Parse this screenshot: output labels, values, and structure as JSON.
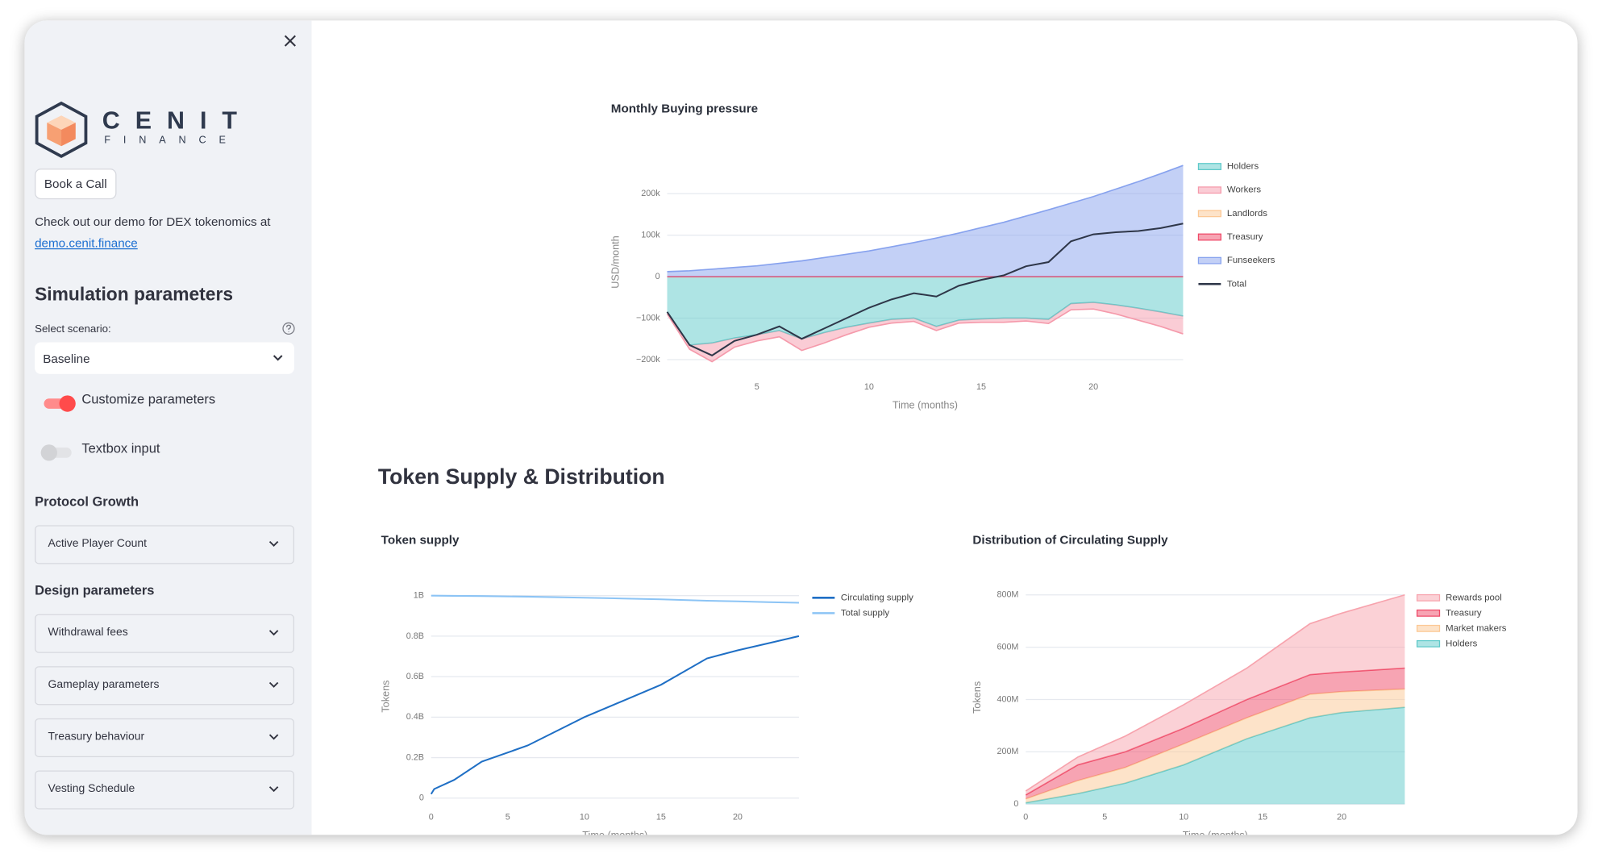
{
  "sidebar": {
    "logo": {
      "name": "CENIT",
      "tagline": "FINANCE"
    },
    "button": "Book a Call",
    "demo_text": "Check out our demo for DEX tokenomics at",
    "demo_link": "demo.cenit.finance",
    "heading": "Simulation parameters",
    "scenario_label": "Select scenario:",
    "scenario_value": "Baseline",
    "toggles": [
      {
        "label": "Customize parameters",
        "on": true
      },
      {
        "label": "Textbox input",
        "on": false
      }
    ],
    "sections": [
      {
        "title": "Protocol Growth",
        "expanders": [
          "Active Player Count"
        ]
      },
      {
        "title": "Design parameters",
        "expanders": [
          "Withdrawal fees",
          "Gameplay parameters",
          "Treasury behaviour",
          "Vesting Schedule"
        ]
      }
    ]
  },
  "section_title": "Token Supply & Distribution",
  "chart_data": [
    {
      "type": "area",
      "title": "Monthly Buying pressure",
      "y_label": "USD/month",
      "x_label": "Time (months)",
      "x": [
        1,
        2,
        3,
        4,
        5,
        6,
        7,
        8,
        9,
        10,
        11,
        12,
        13,
        14,
        15,
        16,
        17,
        18,
        19,
        20,
        21,
        22,
        23,
        24
      ],
      "xlim": [
        1,
        24
      ],
      "xticks": [
        5,
        10,
        15,
        20
      ],
      "ylim": [
        -215000,
        285000
      ],
      "yticks": [
        {
          "value": -200000,
          "label": "−200k"
        },
        {
          "value": -100000,
          "label": "−100k"
        },
        0,
        {
          "value": 100000,
          "label": "100k"
        },
        {
          "value": 200000,
          "label": "200k"
        }
      ],
      "grid": true,
      "legend": "right",
      "legend_reversed": false,
      "series": [
        {
          "name": "Holders",
          "color": "#5ec9c9",
          "values": [
            -85000,
            -165000,
            -160000,
            -148000,
            -140000,
            -130000,
            -150000,
            -135000,
            -122000,
            -112000,
            -103000,
            -100000,
            -120000,
            -105000,
            -102000,
            -100000,
            -100000,
            -103000,
            -65000,
            -62000,
            -68000,
            -76000,
            -85000,
            -95000
          ]
        },
        {
          "name": "Workers",
          "color": "#f59aab",
          "values": [
            -5000,
            -10000,
            -45000,
            -22000,
            -15000,
            -15000,
            -28000,
            -25000,
            -18000,
            -10000,
            -9000,
            -8000,
            -10000,
            -7000,
            -8000,
            -10000,
            -7000,
            -10000,
            -15000,
            -16000,
            -22000,
            -29000,
            -35000,
            -43000
          ]
        },
        {
          "name": "Landlords",
          "color": "#fcc894",
          "values": [
            0,
            0,
            0,
            0,
            0,
            0,
            0,
            0,
            0,
            0,
            0,
            0,
            0,
            0,
            0,
            0,
            0,
            0,
            0,
            0,
            0,
            0,
            0,
            0
          ]
        },
        {
          "name": "Treasury",
          "color": "#ef4a68",
          "values": [
            0,
            0,
            0,
            0,
            0,
            0,
            0,
            0,
            0,
            0,
            0,
            0,
            0,
            0,
            0,
            0,
            0,
            0,
            0,
            0,
            0,
            0,
            0,
            0
          ]
        },
        {
          "name": "Funseekers",
          "color": "#87a2ee",
          "values": [
            12000,
            14000,
            18000,
            22000,
            26000,
            32000,
            38000,
            46000,
            54000,
            62000,
            72000,
            82000,
            93000,
            105000,
            118000,
            131000,
            146000,
            161000,
            177000,
            193000,
            211000,
            229000,
            248000,
            268000
          ]
        },
        {
          "name": "Total",
          "color": "#2e3648",
          "type": "line",
          "values": [
            -85000,
            -165000,
            -190000,
            -155000,
            -140000,
            -120000,
            -150000,
            -125000,
            -100000,
            -75000,
            -55000,
            -40000,
            -48000,
            -22000,
            -8000,
            3000,
            25000,
            35000,
            85000,
            102000,
            107000,
            110000,
            117000,
            128000
          ]
        }
      ]
    },
    {
      "type": "line",
      "title": "Token supply",
      "y_label": "Tokens",
      "x_label": "Time (months)",
      "x": [
        0,
        0.2,
        1.5,
        3.3,
        6.3,
        10,
        12.5,
        15,
        18,
        20,
        22,
        24
      ],
      "xlim": [
        0,
        24
      ],
      "xticks": [
        0,
        5,
        10,
        15,
        20
      ],
      "ylim": [
        -35000000,
        1040000000
      ],
      "yticks": [
        0,
        {
          "value": 200000000,
          "label": "0.2B"
        },
        {
          "value": 400000000,
          "label": "0.4B"
        },
        {
          "value": 600000000,
          "label": "0.6B"
        },
        {
          "value": 800000000,
          "label": "0.8B"
        },
        {
          "value": 1000000000,
          "label": "1B"
        }
      ],
      "grid": true,
      "legend": "right",
      "legend_reversed": false,
      "series": [
        {
          "name": "Circulating supply",
          "color": "#1f6fc5",
          "values": [
            20000000,
            45000000,
            90000000,
            180000000,
            260000000,
            400000000,
            480000000,
            560000000,
            690000000,
            730000000,
            765000000,
            800000000
          ]
        },
        {
          "name": "Total supply",
          "color": "#8cc4f5",
          "values": [
            1000000000,
            1000000000,
            999000000,
            998000000,
            995000000,
            990000000,
            986000000,
            982000000,
            975000000,
            972000000,
            968000000,
            965000000
          ]
        }
      ]
    },
    {
      "type": "area",
      "title": "Distribution of Circulating Supply",
      "y_label": "Tokens",
      "x_label": "Time (months)",
      "x": [
        0,
        3.3,
        6.3,
        10,
        14,
        18,
        20,
        24
      ],
      "xlim": [
        0,
        24
      ],
      "xticks": [
        0,
        5,
        10,
        15,
        20
      ],
      "ylim": [
        -12000000,
        828000000
      ],
      "yticks": [
        0,
        {
          "value": 200000000,
          "label": "200M"
        },
        {
          "value": 400000000,
          "label": "400M"
        },
        {
          "value": 600000000,
          "label": "600M"
        },
        {
          "value": 800000000,
          "label": "800M"
        }
      ],
      "grid": true,
      "legend": "right",
      "legend_reversed": true,
      "series": [
        {
          "name": "Holders",
          "color": "#5ec9c9",
          "values": [
            5000000,
            40000000,
            80000000,
            150000000,
            250000000,
            330000000,
            350000000,
            370000000
          ]
        },
        {
          "name": "Market makers",
          "color": "#fcc894",
          "values": [
            15000000,
            50000000,
            60000000,
            80000000,
            80000000,
            90000000,
            80000000,
            70000000
          ]
        },
        {
          "name": "Treasury",
          "color": "#ef4a68",
          "values": [
            15000000,
            60000000,
            60000000,
            60000000,
            70000000,
            75000000,
            75000000,
            80000000
          ]
        },
        {
          "name": "Rewards pool",
          "color": "#f7a3ad",
          "values": [
            15000000,
            30000000,
            60000000,
            90000000,
            120000000,
            195000000,
            225000000,
            280000000
          ]
        }
      ]
    }
  ]
}
